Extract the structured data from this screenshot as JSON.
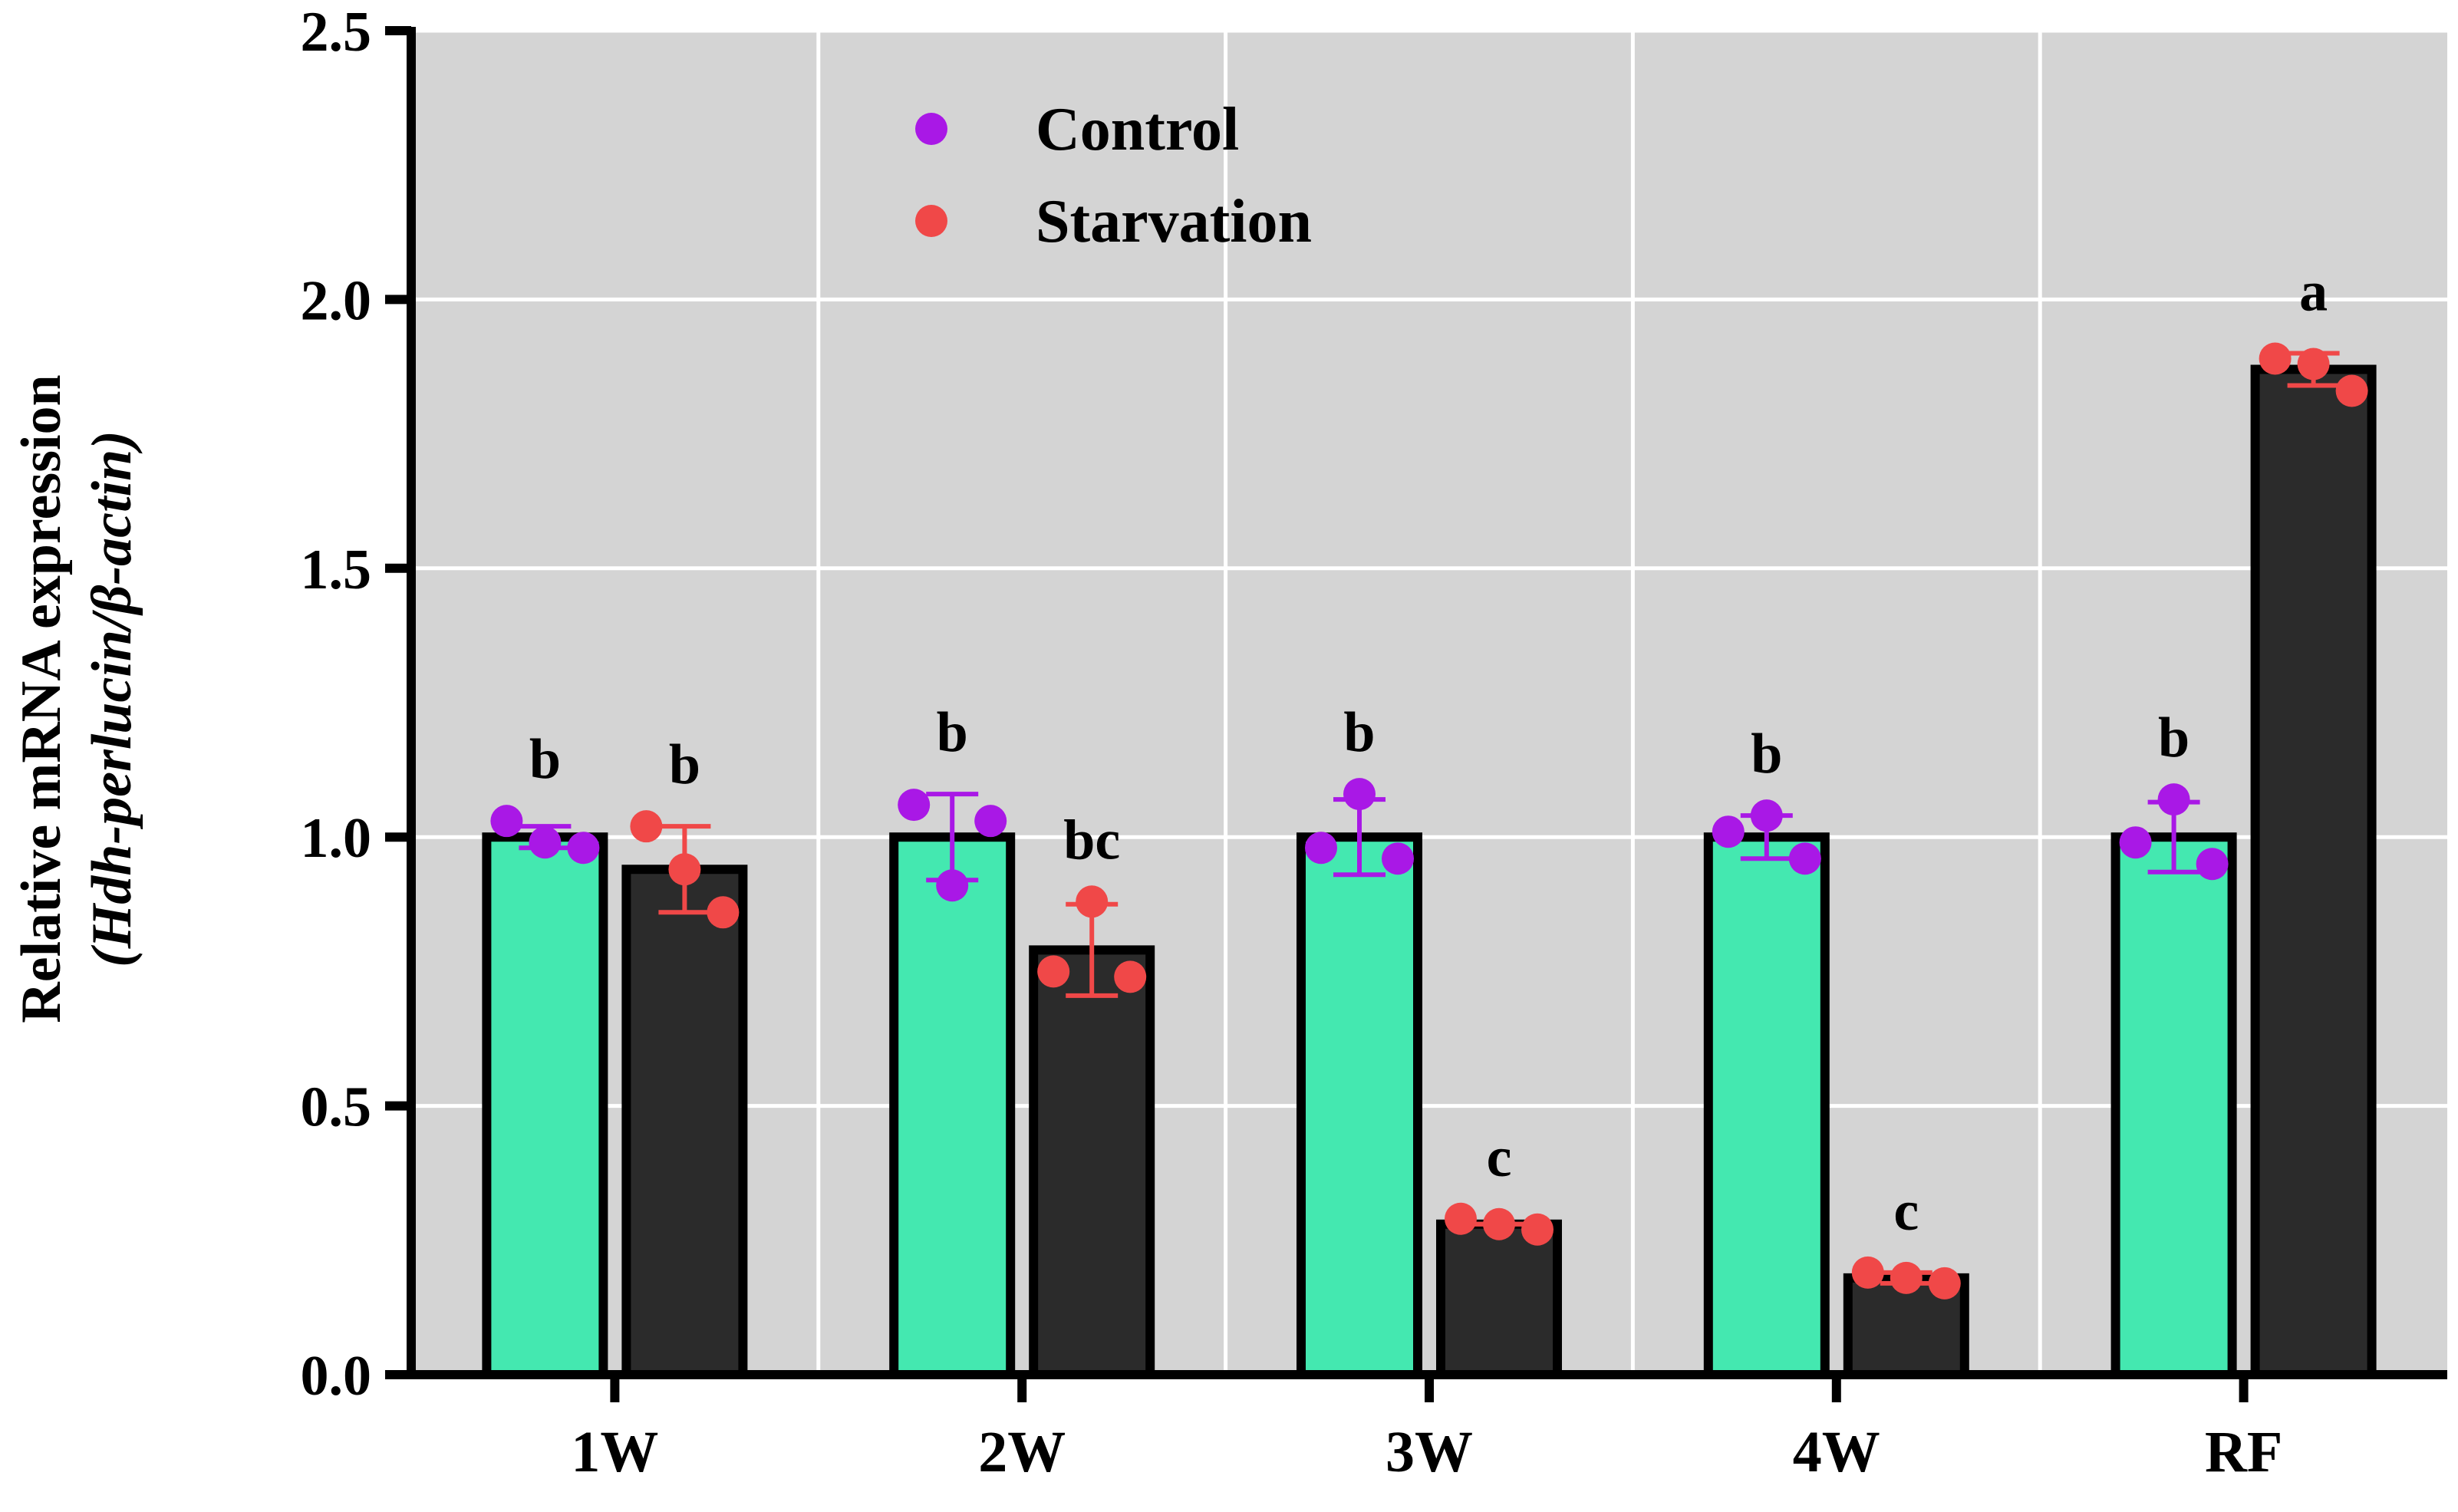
{
  "chart_data": {
    "type": "bar",
    "ylabel_line1": "Relative mRNA expression",
    "ylabel_line2": "(Hdh-perlucin/β-actin)",
    "ylim": [
      0,
      2.5
    ],
    "yticks": [
      "0.0",
      "0.5",
      "1.0",
      "1.5",
      "2.0",
      "2.5"
    ],
    "grid": true,
    "legend_position": "top",
    "categories": [
      "1W",
      "2W",
      "3W",
      "4W",
      "RF"
    ],
    "series": [
      {
        "name": "Control",
        "bar_color": "#44e8b0",
        "point_color": "#a918e6",
        "values": [
          1.0,
          1.0,
          1.0,
          1.0,
          1.0
        ],
        "errors": [
          0.02,
          0.08,
          0.07,
          0.04,
          0.065
        ],
        "points": [
          [
            1.03,
            0.99,
            0.98
          ],
          [
            1.06,
            0.91,
            1.03
          ],
          [
            0.98,
            1.08,
            0.96
          ],
          [
            1.01,
            1.04,
            0.96
          ],
          [
            0.99,
            1.07,
            0.95
          ]
        ],
        "labels": [
          "b",
          "b",
          "b",
          "b",
          "b"
        ]
      },
      {
        "name": "Starvation",
        "bar_color": "#2b2b2b",
        "point_color": "#f04848",
        "values": [
          0.94,
          0.79,
          0.28,
          0.18,
          1.87
        ],
        "errors": [
          0.08,
          0.085,
          0.0,
          0.01,
          0.03
        ],
        "points": [
          [
            1.02,
            0.94,
            0.86
          ],
          [
            0.75,
            0.88,
            0.74
          ],
          [
            0.29,
            0.28,
            0.27
          ],
          [
            0.19,
            0.18,
            0.17
          ],
          [
            1.89,
            1.88,
            1.83
          ]
        ],
        "labels": [
          "b",
          "bc",
          "c",
          "c",
          "a"
        ]
      }
    ]
  }
}
